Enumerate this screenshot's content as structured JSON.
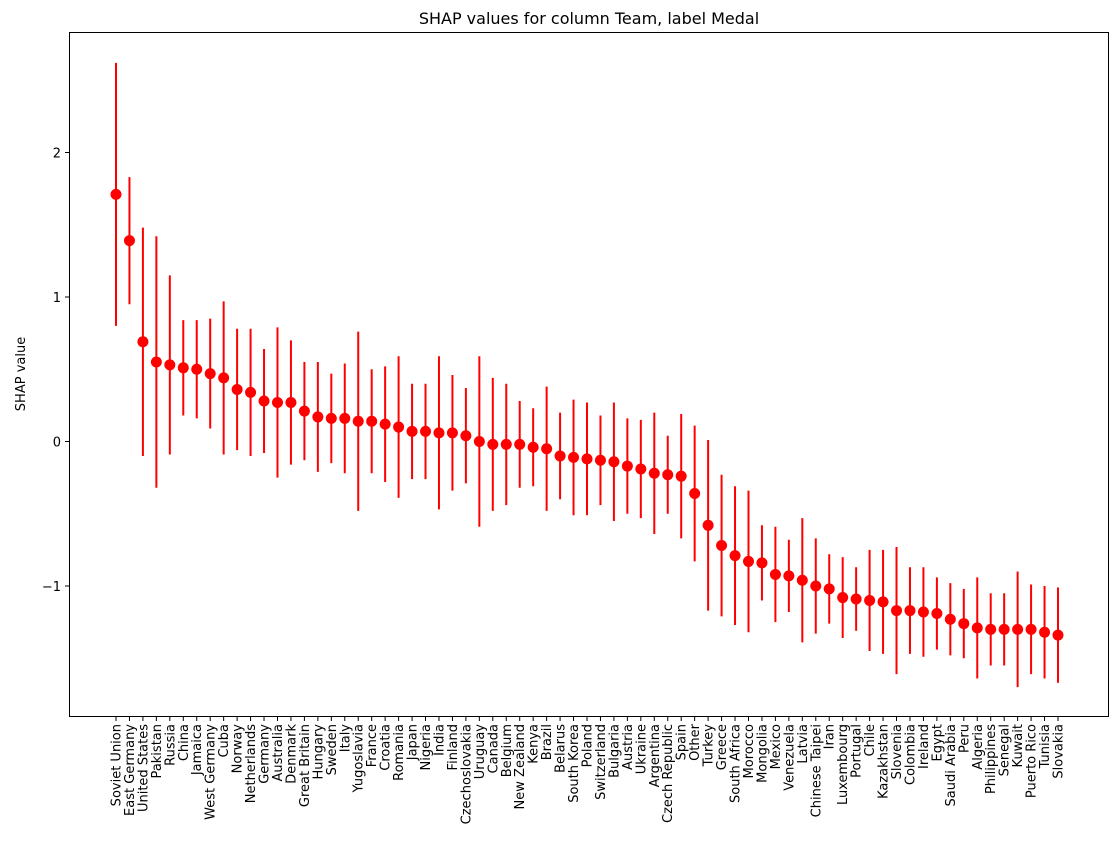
{
  "chart_data": {
    "type": "scatter",
    "title": "SHAP values for column Team, label Medal",
    "xlabel": "",
    "ylabel": "SHAP value",
    "ylim": [
      -1.9,
      2.85
    ],
    "yticks": [
      2,
      1,
      0,
      -1
    ],
    "ytick_labels": [
      "2",
      "1",
      "0",
      "−1"
    ],
    "grid": false,
    "color": "#ff0000",
    "categories": [
      "Soviet Union",
      "East Germany",
      "United States",
      "Pakistan",
      "Russia",
      "China",
      "Jamaica",
      "West Germany",
      "Cuba",
      "Norway",
      "Netherlands",
      "Germany",
      "Australia",
      "Denmark",
      "Great Britain",
      "Hungary",
      "Sweden",
      "Italy",
      "Yugoslavia",
      "France",
      "Croatia",
      "Romania",
      "Japan",
      "Nigeria",
      "India",
      "Finland",
      "Czechoslovakia",
      "Uruguay",
      "Canada",
      "Belgium",
      "New Zealand",
      "Kenya",
      "Brazil",
      "Belarus",
      "South Korea",
      "Poland",
      "Switzerland",
      "Bulgaria",
      "Austria",
      "Ukraine",
      "Argentina",
      "Czech Republic",
      "Spain",
      "Other",
      "Turkey",
      "Greece",
      "South Africa",
      "Morocco",
      "Mongolia",
      "Mexico",
      "Venezuela",
      "Latvia",
      "Chinese Taipei",
      "Iran",
      "Luxembourg",
      "Portugal",
      "Chile",
      "Kazakhstan",
      "Slovenia",
      "Colombia",
      "Ireland",
      "Egypt",
      "Saudi Arabia",
      "Peru",
      "Algeria",
      "Philippines",
      "Senegal",
      "Kuwait",
      "Puerto Rico",
      "Tunisia",
      "Slovakia"
    ],
    "values": [
      1.71,
      1.39,
      0.69,
      0.55,
      0.53,
      0.51,
      0.5,
      0.47,
      0.44,
      0.36,
      0.34,
      0.28,
      0.27,
      0.27,
      0.21,
      0.17,
      0.16,
      0.16,
      0.14,
      0.14,
      0.12,
      0.1,
      0.07,
      0.07,
      0.06,
      0.06,
      0.04,
      0.0,
      -0.02,
      -0.02,
      -0.02,
      -0.04,
      -0.05,
      -0.1,
      -0.11,
      -0.12,
      -0.13,
      -0.14,
      -0.17,
      -0.19,
      -0.22,
      -0.23,
      -0.24,
      -0.36,
      -0.58,
      -0.72,
      -0.79,
      -0.83,
      -0.84,
      -0.92,
      -0.93,
      -0.96,
      -1.0,
      -1.02,
      -1.08,
      -1.09,
      -1.1,
      -1.11,
      -1.17,
      -1.17,
      -1.18,
      -1.19,
      -1.23,
      -1.26,
      -1.29,
      -1.3,
      -1.3,
      -1.3,
      -1.3,
      -1.32,
      -1.34
    ],
    "errors": [
      0.91,
      0.44,
      0.79,
      0.87,
      0.62,
      0.33,
      0.34,
      0.38,
      0.53,
      0.42,
      0.44,
      0.36,
      0.52,
      0.43,
      0.34,
      0.38,
      0.31,
      0.38,
      0.62,
      0.36,
      0.4,
      0.49,
      0.33,
      0.33,
      0.53,
      0.4,
      0.33,
      0.59,
      0.46,
      0.42,
      0.3,
      0.27,
      0.43,
      0.3,
      0.4,
      0.39,
      0.31,
      0.41,
      0.33,
      0.34,
      0.42,
      0.27,
      0.43,
      0.47,
      0.59,
      0.49,
      0.48,
      0.49,
      0.26,
      0.33,
      0.25,
      0.43,
      0.33,
      0.24,
      0.28,
      0.22,
      0.35,
      0.36,
      0.44,
      0.3,
      0.31,
      0.25,
      0.25,
      0.24,
      0.35,
      0.25,
      0.25,
      0.4,
      0.31,
      0.32,
      0.33
    ]
  }
}
